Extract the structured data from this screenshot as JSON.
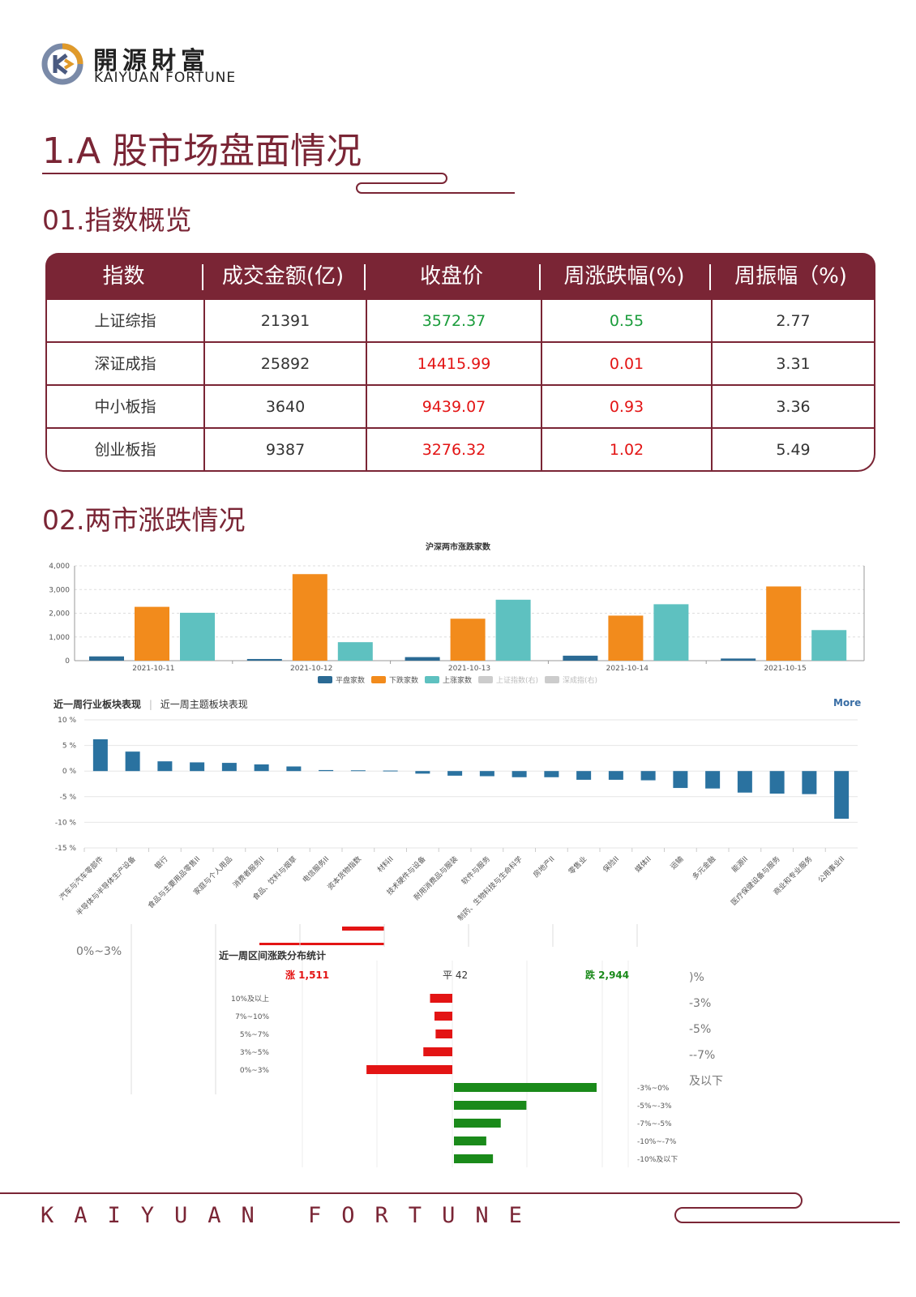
{
  "brand": {
    "cn": "開源財富",
    "en": "KAIYUAN FORTUNE"
  },
  "title": "1.A 股市场盘面情况",
  "section1": "01.指数概览",
  "section2": "02.两市涨跌情况",
  "table": {
    "headers": [
      "指数",
      "成交金额(亿)",
      "收盘价",
      "周涨跌幅(%)",
      "周振幅（%)"
    ],
    "rows": [
      {
        "name": "上证综指",
        "amount": "21391",
        "close": "3572.37",
        "change": "0.55",
        "amp": "2.77",
        "dir": "down"
      },
      {
        "name": "深证成指",
        "amount": "25892",
        "close": "14415.99",
        "change": "0.01",
        "amp": "3.31",
        "dir": "up"
      },
      {
        "name": "中小板指",
        "amount": "3640",
        "close": "9439.07",
        "change": "0.93",
        "amp": "3.36",
        "dir": "up"
      },
      {
        "name": "创业板指",
        "amount": "9387",
        "close": "3276.32",
        "change": "1.02",
        "amp": "5.49",
        "dir": "up"
      }
    ]
  },
  "colors": {
    "brand": "#7a2535",
    "flat": "#2b6a94",
    "fall": "#f28b1c",
    "rise": "#5ec1c0",
    "up_red": "#e31414",
    "down_green": "#1a8a1a",
    "sector_bar": "#2a72a0"
  },
  "chart_data": [
    {
      "type": "bar",
      "title": "沪深两市涨跌家数",
      "categories": [
        "2021-10-11",
        "2021-10-12",
        "2021-10-13",
        "2021-10-14",
        "2021-10-15"
      ],
      "ylim": [
        0,
        4000
      ],
      "yticks": [
        "0",
        "1,000",
        "2,000",
        "3,000",
        "4,000"
      ],
      "series": [
        {
          "name": "平盘家数",
          "values": [
            180,
            70,
            150,
            210,
            90
          ]
        },
        {
          "name": "下跌家数",
          "values": [
            2270,
            3650,
            1770,
            1900,
            3130
          ]
        },
        {
          "name": "上涨家数",
          "values": [
            2020,
            780,
            2570,
            2380,
            1290
          ]
        }
      ],
      "legend_extra": [
        "上证指数(右)",
        "深成指(右)"
      ],
      "legend": "bottom"
    },
    {
      "type": "bar",
      "tabs": [
        "近一周行业板块表现",
        "近一周主题板块表现"
      ],
      "more": "More",
      "ylim": [
        -15,
        10
      ],
      "yticks": [
        "10 %",
        "5 %",
        "0 %",
        "-5 %",
        "-10 %",
        "-15 %"
      ],
      "categories": [
        "汽车与汽车零部件",
        "半导体与半导体生产设备",
        "银行",
        "食品与主要用品零售II",
        "家庭与个人用品",
        "消费者服务II",
        "食品、饮料与烟草",
        "电信服务II",
        "资本货物指数",
        "材料II",
        "技术硬件与设备",
        "耐用消费品与服装",
        "软件与服务",
        "制药、生物科技与生命科学",
        "房地产II",
        "零售业",
        "保险II",
        "媒体II",
        "运输",
        "多元金融",
        "能源II",
        "医疗保健设备与服务",
        "商业和专业服务",
        "公用事业II"
      ],
      "values": [
        6.2,
        3.8,
        1.9,
        1.7,
        1.6,
        1.3,
        0.9,
        0.2,
        0.15,
        0.1,
        -0.5,
        -0.9,
        -1.0,
        -1.2,
        -1.2,
        -1.7,
        -1.7,
        -1.8,
        -3.3,
        -3.4,
        -4.2,
        -4.4,
        -4.5,
        -9.3
      ]
    },
    {
      "type": "bar",
      "title": "近一周区间涨跌分布统计",
      "summary": {
        "up_label": "涨 1,511",
        "flat_label": "平 42",
        "down_label": "跌 2,944"
      },
      "up_categories": [
        "10%及以上",
        "7%~10%",
        "5%~7%",
        "3%~5%",
        "0%~3%"
      ],
      "up_values": [
        100,
        80,
        75,
        130,
        385
      ],
      "down_categories": [
        "-3%~0%",
        "-5%~-3%",
        "-7%~-5%",
        "-10%~-7%",
        "-10%及以下"
      ],
      "down_values": [
        640,
        325,
        210,
        145,
        175
      ],
      "ghost_labels": [
        "0%~3%",
        ")%",
        "-3%",
        "-5%",
        "--7%",
        "及以下"
      ]
    }
  ],
  "footer": "KAIYUAN FORTUNE"
}
